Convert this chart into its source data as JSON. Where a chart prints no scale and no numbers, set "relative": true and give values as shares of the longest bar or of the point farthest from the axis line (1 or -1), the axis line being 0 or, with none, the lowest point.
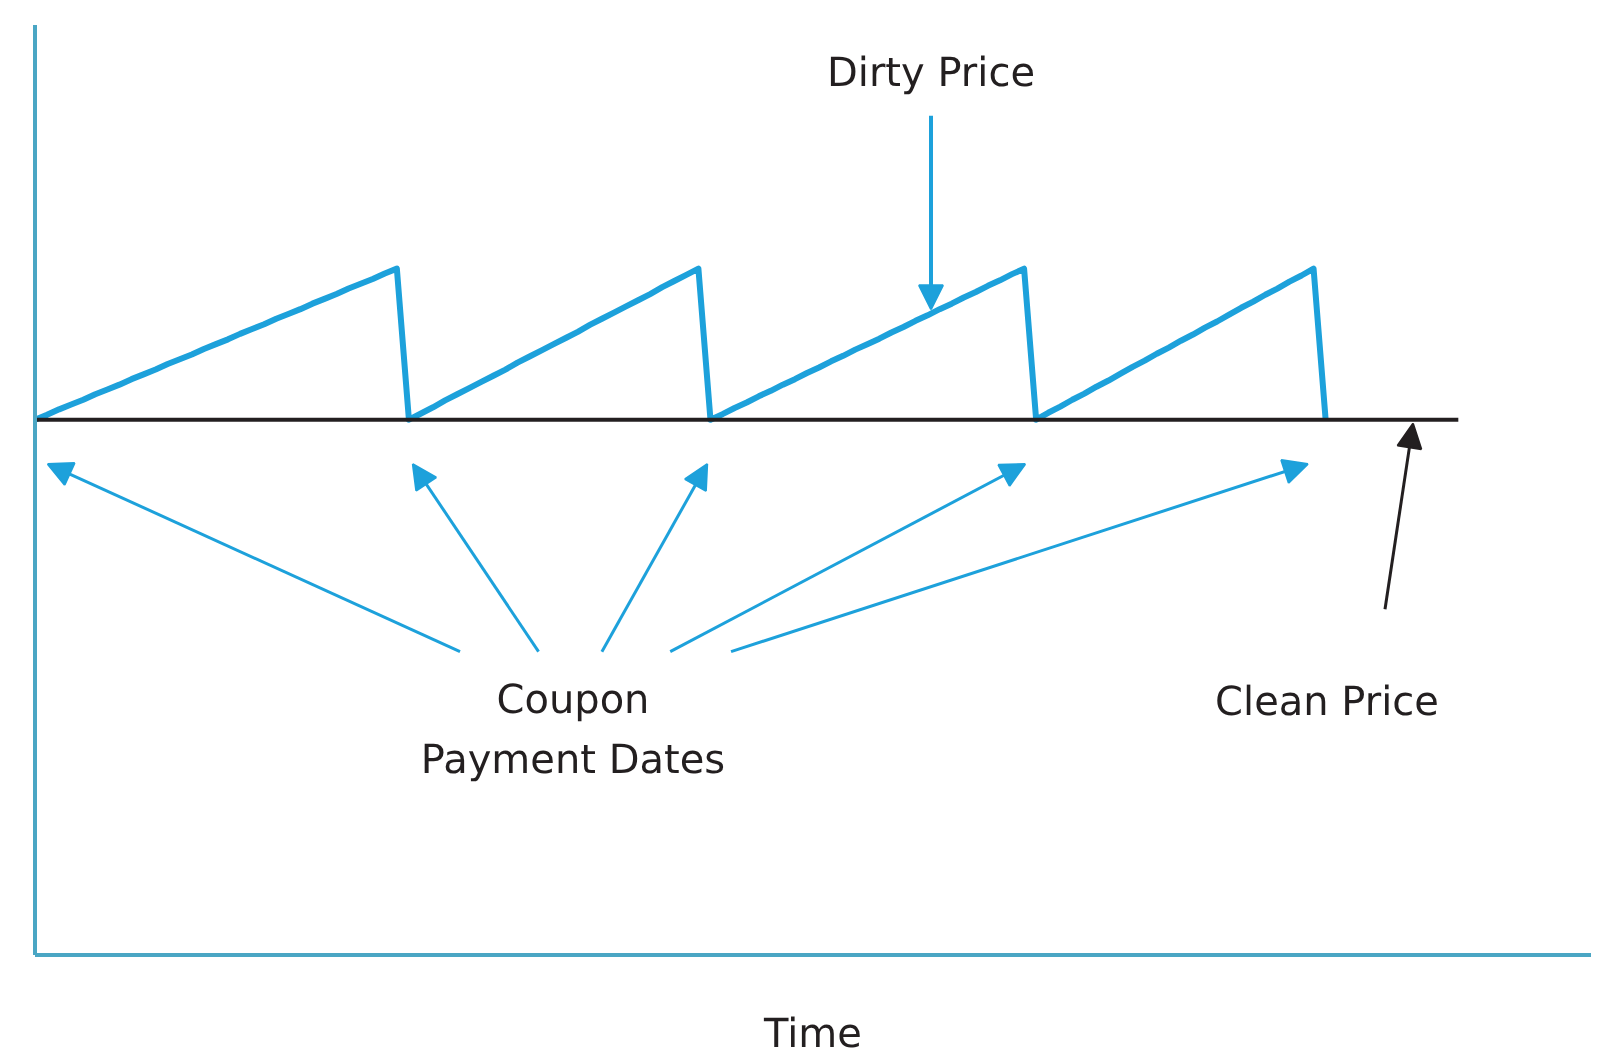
{
  "chart_data": {
    "type": "line",
    "relative": true,
    "xlabel": "Time",
    "categories": [
      null,
      null,
      null,
      null,
      null,
      null,
      null,
      null,
      null,
      null,
      null,
      null,
      null,
      null,
      null,
      null,
      null,
      null,
      null,
      null,
      null,
      null,
      null,
      null,
      null,
      null,
      null,
      null,
      null,
      null,
      null,
      null,
      null,
      null,
      null,
      null,
      null,
      null,
      null,
      null,
      null,
      null,
      null,
      null,
      null,
      null,
      null,
      null,
      null,
      null,
      null,
      null,
      null,
      null,
      null,
      null,
      null,
      null,
      null,
      null,
      null,
      null,
      null,
      null,
      null,
      null,
      null,
      null,
      null,
      null,
      null,
      null,
      null,
      null,
      null,
      null,
      null,
      null,
      null,
      null,
      null,
      null,
      null,
      null,
      null,
      null,
      null,
      null,
      null,
      null,
      null,
      null,
      null,
      null,
      null,
      null,
      null,
      null,
      null,
      null,
      null,
      null,
      null,
      null,
      null,
      null,
      null,
      null,
      null,
      null,
      null,
      null,
      null,
      null,
      null,
      null,
      null,
      null,
      null,
      null,
      null,
      null,
      null,
      null,
      null,
      null,
      null,
      null,
      null,
      null
    ],
    "series": [
      {
        "color": "#1da1db",
        "values": [
          0.78,
          0.787,
          0.795,
          0.802,
          0.809,
          0.817,
          0.824,
          0.831,
          0.839,
          0.846,
          0.853,
          0.861,
          0.868,
          0.875,
          0.883,
          0.89,
          0.897,
          0.905,
          0.912,
          0.919,
          0.927,
          0.934,
          0.941,
          0.949,
          0.956,
          0.963,
          0.971,
          0.978,
          0.985,
          0.993,
          1,
          0.78,
          0.789,
          0.798,
          0.808,
          0.817,
          0.826,
          0.835,
          0.844,
          0.853,
          0.863,
          0.872,
          0.881,
          0.89,
          0.899,
          0.908,
          0.918,
          0.927,
          0.936,
          0.945,
          0.954,
          0.963,
          0.973,
          0.982,
          0.991,
          1,
          0.78,
          0.788,
          0.797,
          0.805,
          0.814,
          0.822,
          0.831,
          0.839,
          0.848,
          0.856,
          0.865,
          0.873,
          0.882,
          0.89,
          0.898,
          0.907,
          0.915,
          0.924,
          0.932,
          0.941,
          0.949,
          0.958,
          0.966,
          0.975,
          0.983,
          0.992,
          1,
          0.78,
          0.79,
          0.799,
          0.809,
          0.818,
          0.828,
          0.837,
          0.847,
          0.857,
          0.866,
          0.876,
          0.885,
          0.895,
          0.904,
          0.914,
          0.923,
          0.933,
          0.943,
          0.952,
          0.962,
          0.971,
          0.981,
          0.99,
          1,
          0.78,
          null,
          null,
          null,
          null,
          null,
          null,
          null,
          null,
          null,
          null,
          null,
          null,
          null,
          null,
          null,
          null,
          null,
          null,
          null,
          null,
          null,
          null
        ]
      },
      {
        "color": "#231f20",
        "values": [
          0.78,
          0.78,
          0.78,
          0.78,
          0.78,
          0.78,
          0.78,
          0.78,
          0.78,
          0.78,
          0.78,
          0.78,
          0.78,
          0.78,
          0.78,
          0.78,
          0.78,
          0.78,
          0.78,
          0.78,
          0.78,
          0.78,
          0.78,
          0.78,
          0.78,
          0.78,
          0.78,
          0.78,
          0.78,
          0.78,
          0.78,
          0.78,
          0.78,
          0.78,
          0.78,
          0.78,
          0.78,
          0.78,
          0.78,
          0.78,
          0.78,
          0.78,
          0.78,
          0.78,
          0.78,
          0.78,
          0.78,
          0.78,
          0.78,
          0.78,
          0.78,
          0.78,
          0.78,
          0.78,
          0.78,
          0.78,
          0.78,
          0.78,
          0.78,
          0.78,
          0.78,
          0.78,
          0.78,
          0.78,
          0.78,
          0.78,
          0.78,
          0.78,
          0.78,
          0.78,
          0.78,
          0.78,
          0.78,
          0.78,
          0.78,
          0.78,
          0.78,
          0.78,
          0.78,
          0.78,
          0.78,
          0.78,
          0.78,
          0.78,
          0.78,
          0.78,
          0.78,
          0.78,
          0.78,
          0.78,
          0.78,
          0.78,
          0.78,
          0.78,
          0.78,
          0.78,
          0.78,
          0.78,
          0.78,
          0.78,
          0.78,
          0.78,
          0.78,
          0.78,
          0.78,
          0.78,
          0.78,
          0.78,
          0.78,
          0.78,
          0.78,
          0.78,
          0.78,
          0.78,
          0.78,
          0.78,
          0.78,
          0.78,
          0.78,
          null,
          null,
          null,
          null,
          null,
          null,
          null,
          null,
          null,
          null,
          null
        ]
      }
    ],
    "annotations": [
      "Dirty Price",
      "Clean Price",
      "Coupon Payment Dates"
    ]
  }
}
